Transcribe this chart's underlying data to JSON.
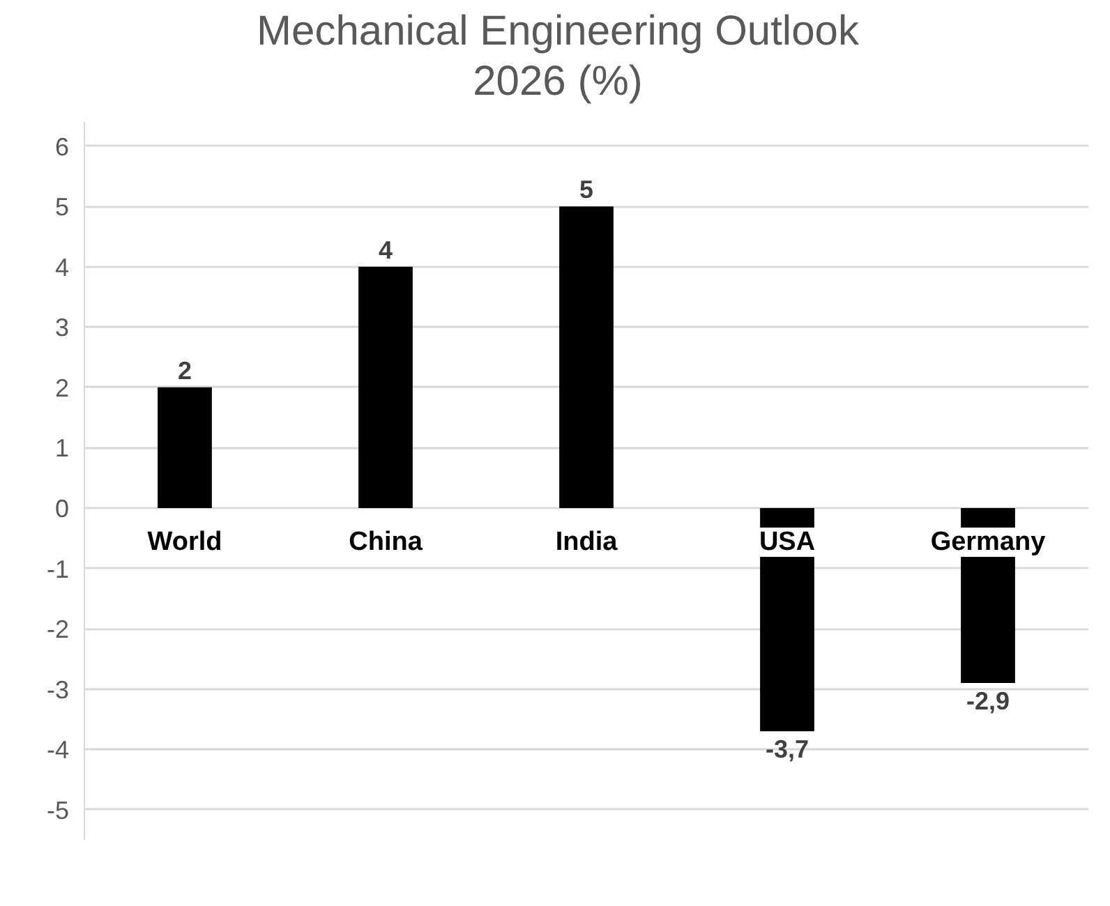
{
  "chart_data": {
    "type": "bar",
    "title": "Mechanical Engineering Outlook\n2026 (%)",
    "categories": [
      "World",
      "China",
      "India",
      "USA",
      "Germany"
    ],
    "values": [
      2,
      4,
      5,
      -3.7,
      -2.9
    ],
    "value_labels": [
      "2",
      "4",
      "5",
      "-3,7",
      "-2,9"
    ],
    "color": "#000000",
    "ylim": [
      -5.5,
      6.4
    ],
    "yticks": [
      -5,
      -4,
      -3,
      -2,
      -1,
      0,
      1,
      2,
      3,
      4,
      5,
      6
    ],
    "grid": "y"
  }
}
